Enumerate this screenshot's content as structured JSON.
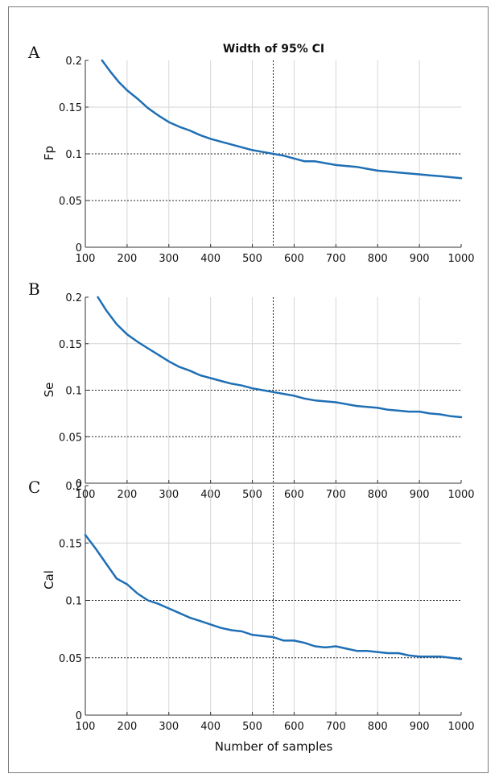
{
  "figure": {
    "title": "Width of 95% CI",
    "xlabel": "Number of samples",
    "reference_x": 550,
    "reference_y": [
      0.1,
      0.05
    ],
    "line_color": "#1f6fb5",
    "grid_color": "#d6d6d6"
  },
  "chart_data": [
    {
      "type": "line",
      "panel": "A",
      "title": "Width of 95% CI",
      "xlabel": "",
      "ylabel": "Fp",
      "xlim": [
        100,
        1000
      ],
      "ylim": [
        0,
        0.2
      ],
      "xticks": [
        100,
        200,
        300,
        400,
        500,
        600,
        700,
        800,
        900,
        1000
      ],
      "yticks": [
        0,
        0.05,
        0.1,
        0.15,
        0.2
      ],
      "ytick_labels": [
        "0",
        "0.05",
        "0.1",
        "0.15",
        "0.2"
      ],
      "grid": true,
      "x": [
        140,
        160,
        180,
        200,
        225,
        250,
        275,
        300,
        325,
        350,
        375,
        400,
        425,
        450,
        475,
        500,
        525,
        550,
        575,
        600,
        625,
        650,
        675,
        700,
        725,
        750,
        775,
        800,
        825,
        850,
        875,
        900,
        925,
        950,
        975,
        1000
      ],
      "series": [
        {
          "values": [
            0.2,
            0.188,
            0.177,
            0.168,
            0.159,
            0.149,
            0.141,
            0.134,
            0.129,
            0.125,
            0.12,
            0.116,
            0.113,
            0.11,
            0.107,
            0.104,
            0.102,
            0.1,
            0.098,
            0.095,
            0.092,
            0.092,
            0.09,
            0.088,
            0.087,
            0.086,
            0.084,
            0.082,
            0.081,
            0.08,
            0.079,
            0.078,
            0.077,
            0.076,
            0.075,
            0.074
          ]
        }
      ]
    },
    {
      "type": "line",
      "panel": "B",
      "xlabel": "",
      "ylabel": "Se",
      "xlim": [
        100,
        1000
      ],
      "ylim": [
        0,
        0.2
      ],
      "xticks": [
        100,
        200,
        300,
        400,
        500,
        600,
        700,
        800,
        900,
        1000
      ],
      "yticks": [
        0,
        0.05,
        0.1,
        0.15,
        0.2
      ],
      "ytick_labels": [
        "0",
        "0.05",
        "0.1",
        "0.15",
        "0.2"
      ],
      "grid": true,
      "x": [
        130,
        150,
        175,
        200,
        225,
        250,
        275,
        300,
        325,
        350,
        375,
        400,
        425,
        450,
        475,
        500,
        525,
        550,
        575,
        600,
        625,
        650,
        675,
        700,
        725,
        750,
        775,
        800,
        825,
        850,
        875,
        900,
        925,
        950,
        975,
        1000
      ],
      "series": [
        {
          "values": [
            0.2,
            0.186,
            0.171,
            0.16,
            0.152,
            0.145,
            0.138,
            0.131,
            0.125,
            0.121,
            0.116,
            0.113,
            0.11,
            0.107,
            0.105,
            0.102,
            0.1,
            0.098,
            0.096,
            0.094,
            0.091,
            0.089,
            0.088,
            0.087,
            0.085,
            0.083,
            0.082,
            0.081,
            0.079,
            0.078,
            0.077,
            0.077,
            0.075,
            0.074,
            0.072,
            0.071
          ]
        }
      ]
    },
    {
      "type": "line",
      "panel": "C",
      "xlabel": "Number of samples",
      "ylabel": "Cal",
      "xlim": [
        100,
        1000
      ],
      "ylim": [
        0,
        0.2
      ],
      "xticks": [
        100,
        200,
        300,
        400,
        500,
        600,
        700,
        800,
        900,
        1000
      ],
      "yticks": [
        0,
        0.05,
        0.1,
        0.15,
        0.2
      ],
      "ytick_labels": [
        "0",
        "0.05",
        "0.1",
        "0.15",
        "0.2"
      ],
      "grid": true,
      "x": [
        100,
        125,
        150,
        175,
        200,
        225,
        250,
        275,
        300,
        325,
        350,
        375,
        400,
        425,
        450,
        475,
        500,
        525,
        550,
        575,
        600,
        625,
        650,
        675,
        700,
        725,
        750,
        775,
        800,
        825,
        850,
        875,
        900,
        925,
        950,
        975,
        1000
      ],
      "series": [
        {
          "values": [
            0.157,
            0.145,
            0.132,
            0.119,
            0.114,
            0.106,
            0.1,
            0.097,
            0.093,
            0.089,
            0.085,
            0.082,
            0.079,
            0.076,
            0.074,
            0.073,
            0.07,
            0.069,
            0.068,
            0.065,
            0.065,
            0.063,
            0.06,
            0.059,
            0.06,
            0.058,
            0.056,
            0.056,
            0.055,
            0.054,
            0.054,
            0.052,
            0.051,
            0.051,
            0.051,
            0.05,
            0.049
          ]
        }
      ]
    }
  ]
}
